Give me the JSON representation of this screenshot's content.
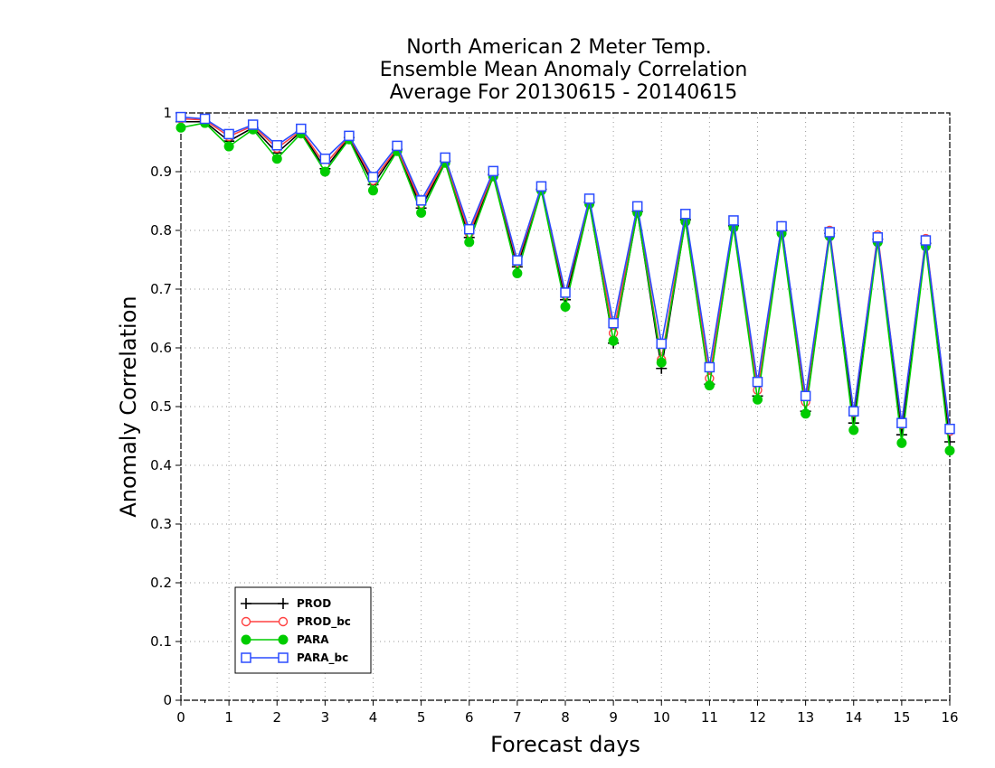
{
  "chart_data": {
    "type": "line",
    "title_lines": [
      "North American 2 Meter Temp.",
      "Ensemble Mean Anomaly Correlation",
      "Average For 20130615 - 20140615"
    ],
    "xlabel": "Forecast days",
    "ylabel": "Anomaly Correlation",
    "xlim": [
      0,
      16
    ],
    "ylim": [
      0,
      1
    ],
    "x_ticks": [
      "0",
      "1",
      "2",
      "3",
      "4",
      "5",
      "6",
      "7",
      "8",
      "9",
      "10",
      "11",
      "12",
      "13",
      "14",
      "15",
      "16"
    ],
    "y_ticks": [
      "0",
      "0.1",
      "0.2",
      "0.3",
      "0.4",
      "0.5",
      "0.6",
      "0.7",
      "0.8",
      "0.9",
      "1"
    ],
    "grid": true,
    "legend_position": "bottom-left",
    "x": [
      0,
      0.5,
      1,
      1.5,
      2,
      2.5,
      3,
      3.5,
      4,
      4.5,
      5,
      5.5,
      6,
      6.5,
      7,
      7.5,
      8,
      8.5,
      9,
      9.5,
      10,
      10.5,
      11,
      11.5,
      12,
      12.5,
      13,
      13.5,
      14,
      14.5,
      15,
      15.5,
      16
    ],
    "series": [
      {
        "name": "PROD",
        "color": "#000000",
        "marker": "plus",
        "values": [
          0.985,
          0.985,
          0.952,
          0.975,
          0.932,
          0.968,
          0.905,
          0.958,
          0.878,
          0.938,
          0.838,
          0.918,
          0.788,
          0.895,
          0.738,
          0.87,
          0.682,
          0.848,
          0.608,
          0.832,
          0.565,
          0.818,
          0.538,
          0.808,
          0.518,
          0.8,
          0.492,
          0.795,
          0.472,
          0.785,
          0.452,
          0.778,
          0.44
        ]
      },
      {
        "name": "PROD_bc",
        "color": "#ff4040",
        "marker": "open-circle",
        "values": [
          0.99,
          0.988,
          0.96,
          0.978,
          0.94,
          0.97,
          0.912,
          0.96,
          0.885,
          0.94,
          0.845,
          0.92,
          0.795,
          0.898,
          0.745,
          0.872,
          0.69,
          0.852,
          0.625,
          0.838,
          0.58,
          0.825,
          0.548,
          0.815,
          0.528,
          0.808,
          0.508,
          0.8,
          0.49,
          0.792,
          0.47,
          0.786,
          0.458
        ]
      },
      {
        "name": "PARA",
        "color": "#00cc00",
        "marker": "filled-circle",
        "values": [
          0.975,
          0.983,
          0.943,
          0.972,
          0.922,
          0.965,
          0.9,
          0.955,
          0.868,
          0.935,
          0.83,
          0.915,
          0.78,
          0.892,
          0.727,
          0.868,
          0.67,
          0.845,
          0.612,
          0.83,
          0.575,
          0.815,
          0.536,
          0.805,
          0.512,
          0.795,
          0.488,
          0.79,
          0.46,
          0.78,
          0.438,
          0.773,
          0.425
        ]
      },
      {
        "name": "PARA_bc",
        "color": "#2a4bff",
        "marker": "open-square",
        "values": [
          0.993,
          0.99,
          0.964,
          0.98,
          0.945,
          0.973,
          0.922,
          0.961,
          0.891,
          0.944,
          0.851,
          0.924,
          0.802,
          0.901,
          0.749,
          0.875,
          0.694,
          0.854,
          0.642,
          0.841,
          0.607,
          0.828,
          0.567,
          0.817,
          0.542,
          0.807,
          0.518,
          0.797,
          0.492,
          0.788,
          0.472,
          0.783,
          0.462
        ]
      }
    ]
  }
}
